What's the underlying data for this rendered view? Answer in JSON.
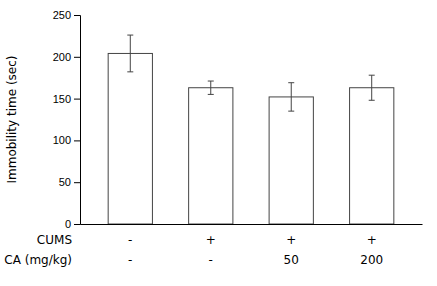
{
  "chart_data": {
    "type": "bar",
    "categories": [
      null,
      null,
      null,
      null
    ],
    "values": [
      204,
      163,
      152,
      163
    ],
    "errors": [
      22,
      8,
      17,
      15
    ],
    "color": "white",
    "ylabel": "Immobility time (sec)",
    "ylim": [
      0,
      250
    ],
    "yticks": [
      0,
      50,
      100,
      150,
      200,
      250
    ],
    "grid": false,
    "table": [
      {
        "header": "CUMS",
        "cells": [
          "-",
          "+",
          "+",
          "+"
        ]
      },
      {
        "header": "CA (mg/kg)",
        "cells": [
          "-",
          "-",
          "50",
          "200"
        ]
      }
    ]
  }
}
